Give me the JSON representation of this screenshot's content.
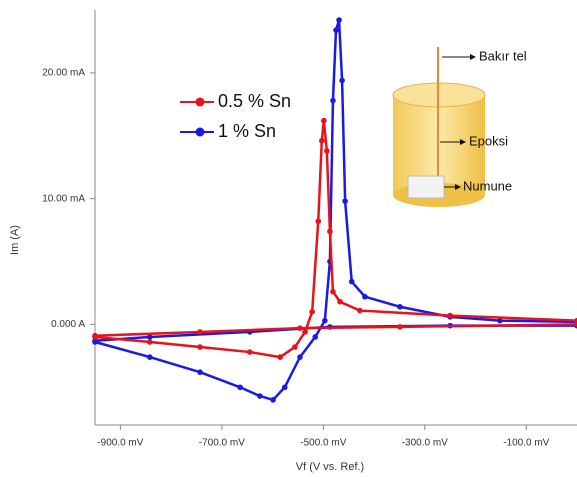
{
  "chart_data": {
    "type": "line",
    "x_label": "Vf (V vs. Ref.)",
    "y_label": "Im (A)",
    "xlim": [
      -950,
      0
    ],
    "ylim": [
      -8,
      25
    ],
    "xticks": [
      {
        "value": -900,
        "label": "-900.0 mV"
      },
      {
        "value": -700,
        "label": "-700.0 mV"
      },
      {
        "value": -500,
        "label": "-500.0 mV"
      },
      {
        "value": -300,
        "label": "-300.0 mV"
      },
      {
        "value": -100,
        "label": "-100.0 mV"
      }
    ],
    "yticks": [
      {
        "value": 0,
        "label": "0.000 A"
      },
      {
        "value": 10,
        "label": "10.00 mA"
      },
      {
        "value": 20,
        "label": "20.00 mA"
      }
    ],
    "series": [
      {
        "name": "1 % Sn",
        "color": "#1a1ae6",
        "x": [
          -950,
          -842,
          -743,
          -664,
          -625,
          -599,
          -576,
          -546,
          -516,
          -497,
          -487,
          -481,
          -475,
          -469,
          -463,
          -457,
          -444,
          -418,
          -349,
          -250,
          -152,
          0,
          0,
          -250,
          -487,
          -645,
          -842,
          -950
        ],
        "values": [
          -1.4,
          -2.6,
          -3.8,
          -5,
          -5.7,
          -6,
          -5,
          -2.6,
          -1,
          0.3,
          5,
          17.8,
          23.4,
          24.2,
          19.4,
          9.8,
          3.4,
          2.2,
          1.4,
          0.6,
          0.3,
          0.2,
          -0.1,
          -0.1,
          -0.2,
          -0.6,
          -1,
          -1.3
        ]
      },
      {
        "name": "0.5 % Sn",
        "color": "#e8131a",
        "x": [
          -950,
          -842,
          -743,
          -645,
          -585,
          -556,
          -536,
          -522,
          -510,
          -503,
          -499,
          -493,
          -487,
          -481,
          -467,
          -428,
          -250,
          0,
          0,
          -349,
          -546,
          -743,
          -950
        ],
        "values": [
          -1,
          -1.4,
          -1.8,
          -2.2,
          -2.6,
          -1.8,
          -0.6,
          1,
          8.2,
          14.6,
          16.2,
          13.8,
          7.4,
          2.6,
          1.8,
          1.1,
          0.7,
          0.3,
          0,
          -0.2,
          -0.3,
          -0.6,
          -0.9
        ]
      }
    ],
    "annotations": [
      "Bakır tel",
      "Epoksi",
      "Numune"
    ]
  }
}
